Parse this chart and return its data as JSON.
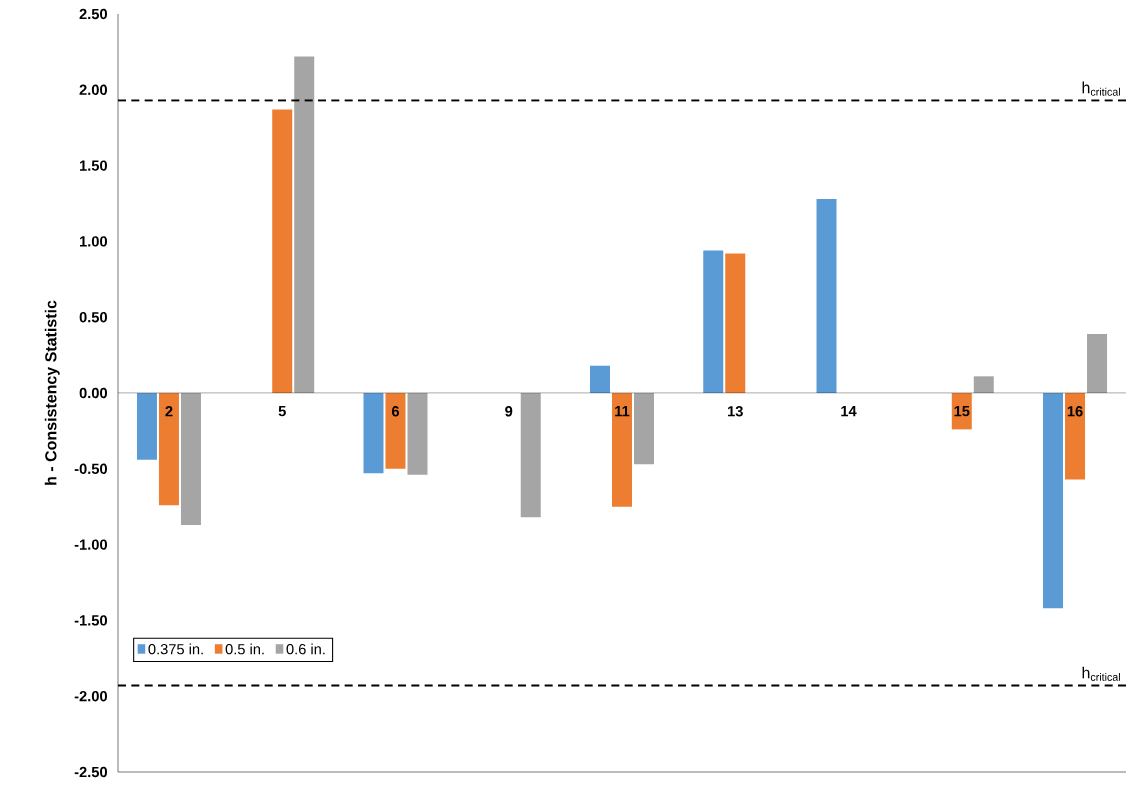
{
  "chart_data": {
    "type": "bar",
    "ylabel": "h - Consistency Statistic",
    "categories": [
      "2",
      "5",
      "6",
      "9",
      "11",
      "13",
      "14",
      "15",
      "16"
    ],
    "series": [
      {
        "name": "0.375 in.",
        "color": "#5b9bd5",
        "values": [
          -0.44,
          null,
          -0.53,
          null,
          0.18,
          0.94,
          1.28,
          null,
          -1.42
        ]
      },
      {
        "name": "0.5 in.",
        "color": "#ed7d31",
        "values": [
          -0.74,
          1.87,
          -0.5,
          null,
          -0.75,
          0.92,
          null,
          -0.24,
          -0.57
        ]
      },
      {
        "name": "0.6 in.",
        "color": "#a5a5a5",
        "values": [
          -0.87,
          2.22,
          -0.54,
          -0.82,
          -0.47,
          null,
          null,
          0.11,
          0.39
        ]
      }
    ],
    "ylim": [
      -2.5,
      2.5
    ],
    "yticks": [
      {
        "value": -2.5,
        "label": "-2.50"
      },
      {
        "value": -2,
        "label": "-2.00"
      },
      {
        "value": -1.5,
        "label": "-1.50"
      },
      {
        "value": -1,
        "label": "-1.00"
      },
      {
        "value": -0.5,
        "label": "-0.50"
      },
      {
        "value": 0,
        "label": "0.00"
      },
      {
        "value": 0.5,
        "label": "0.50"
      },
      {
        "value": 1,
        "label": "1.00"
      },
      {
        "value": 1.5,
        "label": "1.50"
      },
      {
        "value": 2,
        "label": "2.00"
      },
      {
        "value": 2.5,
        "label": "2.50"
      }
    ],
    "ref_lines": [
      {
        "axis": "y",
        "value": 1.93,
        "label": "h$_{critical}$",
        "line_style": "dashed"
      },
      {
        "axis": "y",
        "value": -1.93,
        "label": "h$_{critical}$",
        "line_style": "dashed"
      }
    ],
    "legend": "bottom left",
    "grid": false
  }
}
